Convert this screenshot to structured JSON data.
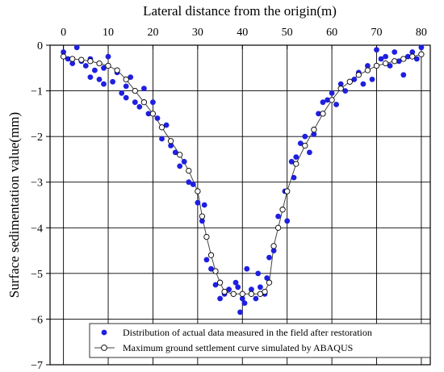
{
  "chart_data": {
    "type": "scatter",
    "xlabel": "Lateral distance from the origin(m)",
    "ylabel": "Surface sedimentation value(mm)",
    "xlim": [
      -3,
      82
    ],
    "ylim": [
      -7,
      0
    ],
    "xticks": [
      0,
      10,
      20,
      30,
      40,
      50,
      60,
      70,
      80
    ],
    "yticks": [
      0,
      -1,
      -2,
      -3,
      -4,
      -5,
      -6,
      -7
    ],
    "xtick_labels": [
      "0",
      "10",
      "20",
      "30",
      "40",
      "50",
      "60",
      "70",
      "80"
    ],
    "ytick_labels": [
      "0",
      "−1",
      "−2",
      "−3",
      "−4",
      "−5",
      "−6",
      "−7"
    ],
    "x_axis_position": "top",
    "grid": true,
    "legend_position": "bottom-right",
    "series": [
      {
        "name": "Distribution of actual data measured in the field after restoration",
        "marker": "filled-circle",
        "color": "#1f1fe0",
        "points": [
          [
            0,
            -0.15
          ],
          [
            1,
            -0.3
          ],
          [
            2,
            -0.4
          ],
          [
            3,
            -0.05
          ],
          [
            4,
            -0.35
          ],
          [
            5,
            -0.45
          ],
          [
            6,
            -0.3
          ],
          [
            6,
            -0.7
          ],
          [
            7,
            -0.55
          ],
          [
            8,
            -0.75
          ],
          [
            9,
            -0.85
          ],
          [
            9,
            -0.5
          ],
          [
            10,
            -0.25
          ],
          [
            11,
            -0.8
          ],
          [
            12,
            -0.6
          ],
          [
            13,
            -1.05
          ],
          [
            14,
            -1.15
          ],
          [
            14,
            -0.9
          ],
          [
            15,
            -0.7
          ],
          [
            16,
            -1.25
          ],
          [
            17,
            -1.35
          ],
          [
            18,
            -0.95
          ],
          [
            19,
            -1.5
          ],
          [
            20,
            -1.25
          ],
          [
            21,
            -1.6
          ],
          [
            22,
            -2.05
          ],
          [
            23,
            -1.75
          ],
          [
            24,
            -2.2
          ],
          [
            25,
            -2.35
          ],
          [
            26,
            -2.65
          ],
          [
            27,
            -2.55
          ],
          [
            28,
            -3.0
          ],
          [
            29,
            -3.05
          ],
          [
            30,
            -3.45
          ],
          [
            31,
            -3.85
          ],
          [
            31.5,
            -3.5
          ],
          [
            32,
            -4.7
          ],
          [
            33,
            -4.9
          ],
          [
            34,
            -5.25
          ],
          [
            35,
            -5.55
          ],
          [
            36,
            -5.45
          ],
          [
            37,
            -5.35
          ],
          [
            38,
            -5.45
          ],
          [
            38.5,
            -5.2
          ],
          [
            39,
            -5.3
          ],
          [
            39.5,
            -5.85
          ],
          [
            40,
            -5.55
          ],
          [
            40.5,
            -5.65
          ],
          [
            41,
            -4.9
          ],
          [
            42,
            -5.35
          ],
          [
            43,
            -5.55
          ],
          [
            43.5,
            -5.0
          ],
          [
            44,
            -5.3
          ],
          [
            45,
            -5.45
          ],
          [
            45.5,
            -5.1
          ],
          [
            46,
            -4.65
          ],
          [
            47,
            -4.5
          ],
          [
            48,
            -3.75
          ],
          [
            49,
            -3.6
          ],
          [
            49.5,
            -3.2
          ],
          [
            50,
            -3.85
          ],
          [
            51,
            -2.55
          ],
          [
            51.5,
            -2.9
          ],
          [
            52,
            -2.45
          ],
          [
            53,
            -2.15
          ],
          [
            54,
            -2.0
          ],
          [
            55,
            -2.35
          ],
          [
            56,
            -1.95
          ],
          [
            57,
            -1.5
          ],
          [
            58,
            -1.25
          ],
          [
            59,
            -1.2
          ],
          [
            60,
            -1.05
          ],
          [
            61,
            -1.3
          ],
          [
            62,
            -0.85
          ],
          [
            63,
            -1.0
          ],
          [
            64,
            -0.8
          ],
          [
            65,
            -0.75
          ],
          [
            66,
            -0.6
          ],
          [
            67,
            -0.85
          ],
          [
            68,
            -0.45
          ],
          [
            69,
            -0.75
          ],
          [
            70,
            -0.1
          ],
          [
            71,
            -0.3
          ],
          [
            72,
            -0.25
          ],
          [
            73,
            -0.45
          ],
          [
            74,
            -0.15
          ],
          [
            75,
            -0.35
          ],
          [
            76,
            -0.65
          ],
          [
            77,
            -0.25
          ],
          [
            78,
            -0.15
          ],
          [
            79,
            -0.3
          ],
          [
            80,
            -0.05
          ]
        ]
      },
      {
        "name": "Maximum ground settlement curve simulated by ABAQUS",
        "marker": "open-circle",
        "color": "#000000",
        "points": [
          [
            0,
            -0.25
          ],
          [
            2,
            -0.3
          ],
          [
            4,
            -0.32
          ],
          [
            6,
            -0.35
          ],
          [
            8,
            -0.4
          ],
          [
            10,
            -0.45
          ],
          [
            12,
            -0.55
          ],
          [
            14,
            -0.75
          ],
          [
            16,
            -1.0
          ],
          [
            18,
            -1.25
          ],
          [
            20,
            -1.5
          ],
          [
            22,
            -1.8
          ],
          [
            24,
            -2.1
          ],
          [
            26,
            -2.4
          ],
          [
            28,
            -2.75
          ],
          [
            30,
            -3.2
          ],
          [
            31,
            -3.75
          ],
          [
            32,
            -4.2
          ],
          [
            33,
            -4.6
          ],
          [
            34,
            -4.95
          ],
          [
            35,
            -5.2
          ],
          [
            36,
            -5.4
          ],
          [
            38,
            -5.45
          ],
          [
            40,
            -5.45
          ],
          [
            42,
            -5.45
          ],
          [
            44,
            -5.45
          ],
          [
            45,
            -5.4
          ],
          [
            46,
            -5.2
          ],
          [
            47,
            -4.4
          ],
          [
            48,
            -4.0
          ],
          [
            49,
            -3.6
          ],
          [
            50,
            -3.2
          ],
          [
            52,
            -2.6
          ],
          [
            54,
            -2.2
          ],
          [
            56,
            -1.85
          ],
          [
            58,
            -1.5
          ],
          [
            60,
            -1.2
          ],
          [
            62,
            -0.95
          ],
          [
            64,
            -0.8
          ],
          [
            66,
            -0.65
          ],
          [
            68,
            -0.55
          ],
          [
            70,
            -0.45
          ],
          [
            72,
            -0.4
          ],
          [
            74,
            -0.35
          ],
          [
            76,
            -0.3
          ],
          [
            78,
            -0.25
          ],
          [
            80,
            -0.2
          ]
        ]
      }
    ]
  }
}
